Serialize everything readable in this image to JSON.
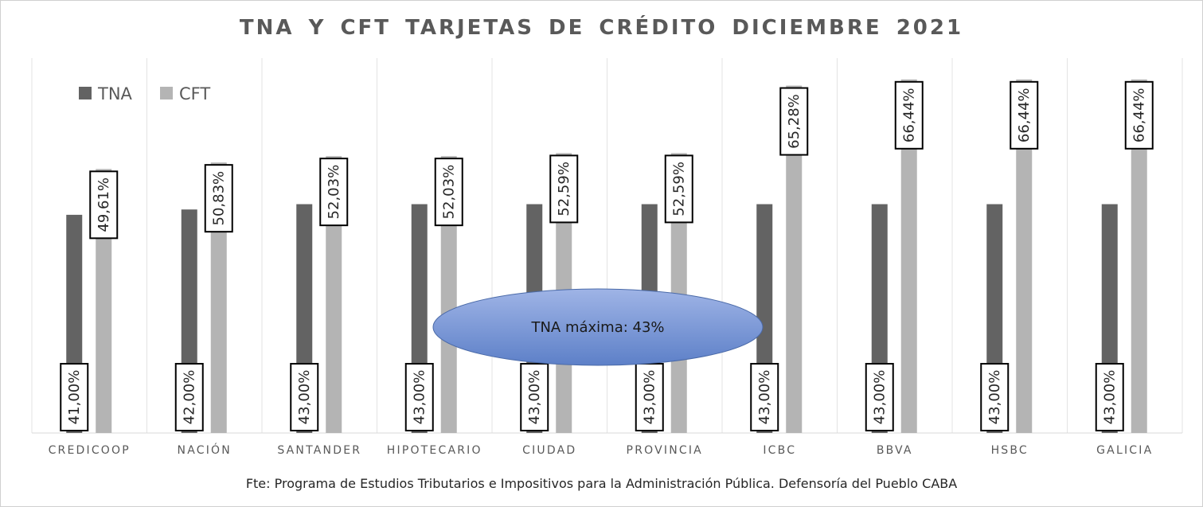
{
  "chart_data": {
    "type": "bar",
    "title": "TNA Y CFT TARJETAS DE CRÉDITO DICIEMBRE 2021",
    "categories": [
      "CREDICOOP",
      "NACIÓN",
      "SANTANDER",
      "HIPOTECARIO",
      "CIUDAD",
      "PROVINCIA",
      "ICBC",
      "BBVA",
      "HSBC",
      "GALICIA"
    ],
    "series": [
      {
        "name": "TNA",
        "color": "#636363",
        "values": [
          41.0,
          42.0,
          43.0,
          43.0,
          43.0,
          43.0,
          43.0,
          43.0,
          43.0,
          43.0
        ],
        "labels": [
          "41,00%",
          "42,00%",
          "43,00%",
          "43,00%",
          "43,00%",
          "43,00%",
          "43,00%",
          "43,00%",
          "43,00%",
          "43,00%"
        ]
      },
      {
        "name": "CFT",
        "color": "#b4b4b4",
        "values": [
          49.61,
          50.83,
          52.03,
          52.03,
          52.59,
          52.59,
          65.28,
          66.44,
          66.44,
          66.44
        ],
        "labels": [
          "49,61%",
          "50,83%",
          "52,03%",
          "52,03%",
          "52,59%",
          "52,59%",
          "65,28%",
          "66,44%",
          "66,44%",
          "66,44%"
        ]
      }
    ],
    "ylim": [
      0,
      70
    ],
    "grid": "vertical",
    "legend": "top-left",
    "annotation": "TNA máxima: 43%"
  },
  "source": "Fte: Programa de Estudios Tributarios e Impositivos para la Administración Pública. Defensoría del Pueblo CABA"
}
